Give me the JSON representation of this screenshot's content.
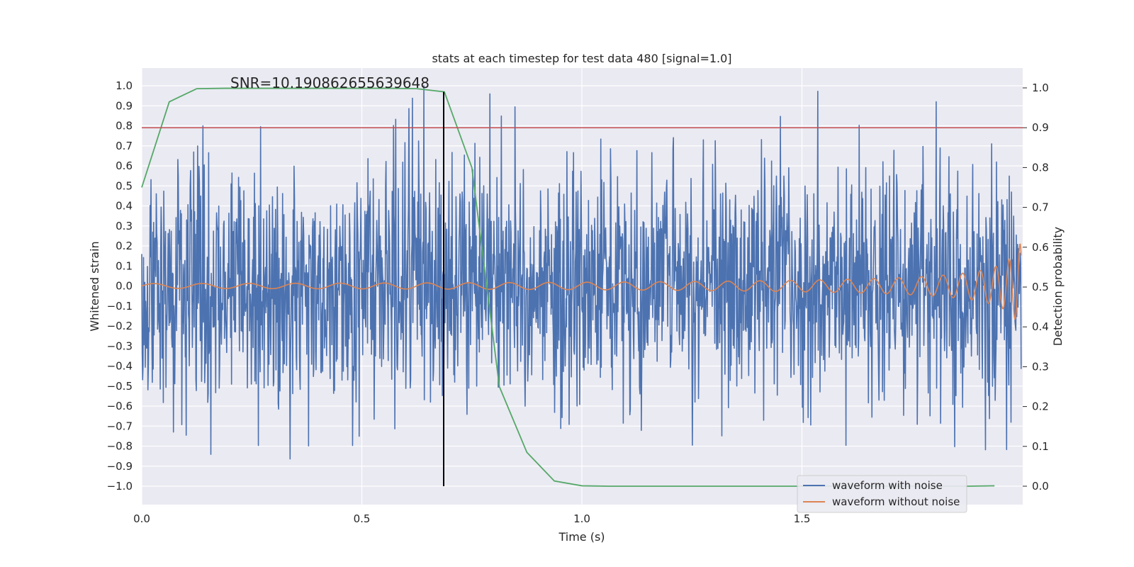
{
  "chart_data": {
    "type": "line",
    "title": "stats at each timestep for test data 480 [signal=1.0]",
    "xlabel": "Time (s)",
    "ylabel": "Whitened strain",
    "ylabel_right": "Detection probability",
    "xlim": [
      0.0,
      2.0
    ],
    "ylim": [
      -1.1,
      1.1
    ],
    "ylim_right": [
      -0.05,
      1.05
    ],
    "x_ticks": [
      "0.0",
      "0.5",
      "1.0",
      "1.5"
    ],
    "x_tick_values": [
      0.0,
      0.5,
      1.0,
      1.5
    ],
    "y_ticks": [
      "−1.0",
      "−0.9",
      "−0.8",
      "−0.7",
      "−0.6",
      "−0.5",
      "−0.4",
      "−0.3",
      "−0.2",
      "−0.1",
      "0.0",
      "0.1",
      "0.2",
      "0.3",
      "0.4",
      "0.5",
      "0.6",
      "0.7",
      "0.8",
      "0.9",
      "1.0"
    ],
    "y_tick_values": [
      -1.0,
      -0.9,
      -0.8,
      -0.7,
      -0.6,
      -0.5,
      -0.4,
      -0.3,
      -0.2,
      -0.1,
      0.0,
      0.1,
      0.2,
      0.3,
      0.4,
      0.5,
      0.6,
      0.7,
      0.8,
      0.9,
      1.0
    ],
    "y_ticks_right": [
      "0.0",
      "0.1",
      "0.2",
      "0.3",
      "0.4",
      "0.5",
      "0.6",
      "0.7",
      "0.8",
      "0.9",
      "1.0"
    ],
    "y_tick_values_right": [
      0.0,
      0.1,
      0.2,
      0.3,
      0.4,
      0.5,
      0.6,
      0.7,
      0.8,
      0.9,
      1.0
    ],
    "grid": true,
    "legend_placement": "lower-right",
    "annotation": {
      "text": "SNR=10.190862655639648",
      "x": 0.2,
      "y": 1.0
    },
    "threshold_line": {
      "y_right": 0.9,
      "color": "#c44e52"
    },
    "vertical_marker": {
      "x": 0.686,
      "y_right_top": 0.99,
      "color": "#000000"
    },
    "series": [
      {
        "name": "waveform with noise",
        "color": "#4c72b0",
        "axis": "left",
        "description": "dense noisy strain, approx uniform noise in [-1.0, 1.0] sampled at ~1000 Hz",
        "generator": {
          "n": 1999,
          "x0": 0.0,
          "x1": 1.998,
          "amplitude_sd": 0.3
        }
      },
      {
        "name": "waveform without noise",
        "color": "#dd8452",
        "axis": "left",
        "description": "chirp signal rising in frequency and amplitude",
        "generator": {
          "n": 1999,
          "x0": 0.0,
          "x1": 1.998
        }
      },
      {
        "name": "",
        "color": "#55a868",
        "axis": "right",
        "x": [
          0.0,
          0.0625,
          0.125,
          0.1875,
          0.25,
          0.3125,
          0.375,
          0.4375,
          0.5,
          0.5625,
          0.625,
          0.6875,
          0.75,
          0.8125,
          0.875,
          0.9375,
          1.0,
          1.0625,
          1.125,
          1.1875,
          1.25,
          1.3125,
          1.375,
          1.4375,
          1.5,
          1.5625,
          1.625,
          1.6875,
          1.75,
          1.8125,
          1.875,
          1.9375
        ],
        "values": [
          0.75,
          0.965,
          0.998,
          0.999,
          0.999,
          0.999,
          0.999,
          0.999,
          0.999,
          0.999,
          0.998,
          0.99,
          0.8,
          0.25,
          0.085,
          0.013,
          0.001,
          0.0,
          0.0,
          0.0,
          0.0,
          0.0,
          0.0,
          0.0,
          0.0,
          0.0,
          0.0,
          0.0,
          0.0,
          0.0,
          0.0,
          0.001
        ]
      }
    ],
    "colors": {
      "background": "#eaeaf2",
      "grid": "#ffffff",
      "text": "#262626"
    }
  }
}
